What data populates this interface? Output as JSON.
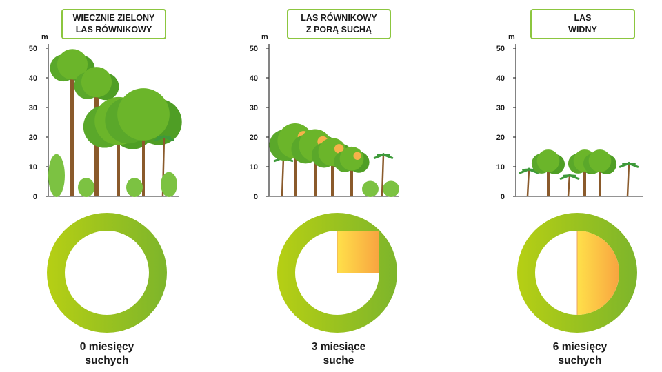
{
  "height_axis": {
    "unit": "m",
    "ticks": [
      "50",
      "40",
      "30",
      "20",
      "10",
      "0"
    ],
    "max": 50
  },
  "colors": {
    "frame": "#8cc63f",
    "ring_left": "#b6cf14",
    "ring_right": "#7db52b",
    "dry_start": "#ffe04a",
    "dry_end": "#f8a440",
    "foliage": "#6bb52a",
    "trunk": "#8a5a2b"
  },
  "panels": [
    {
      "title_line1": "WIECZNIE ZIELONY",
      "title_line2": "LAS RÓWNIKOWY",
      "canopy_height_m": 50,
      "dry_months": 0,
      "caption_line1": "0 miesięcy",
      "caption_line2": "suchych"
    },
    {
      "title_line1": "LAS RÓWNIKOWY",
      "title_line2": "Z PORĄ SUCHĄ",
      "canopy_height_m": 25,
      "dry_months": 3,
      "caption_line1": "3 miesiące",
      "caption_line2": "suche"
    },
    {
      "title_line1": "LAS",
      "title_line2": "WIDNY",
      "canopy_height_m": 16,
      "dry_months": 6,
      "caption_line1": "6 miesięcy",
      "caption_line2": "suchych"
    }
  ]
}
